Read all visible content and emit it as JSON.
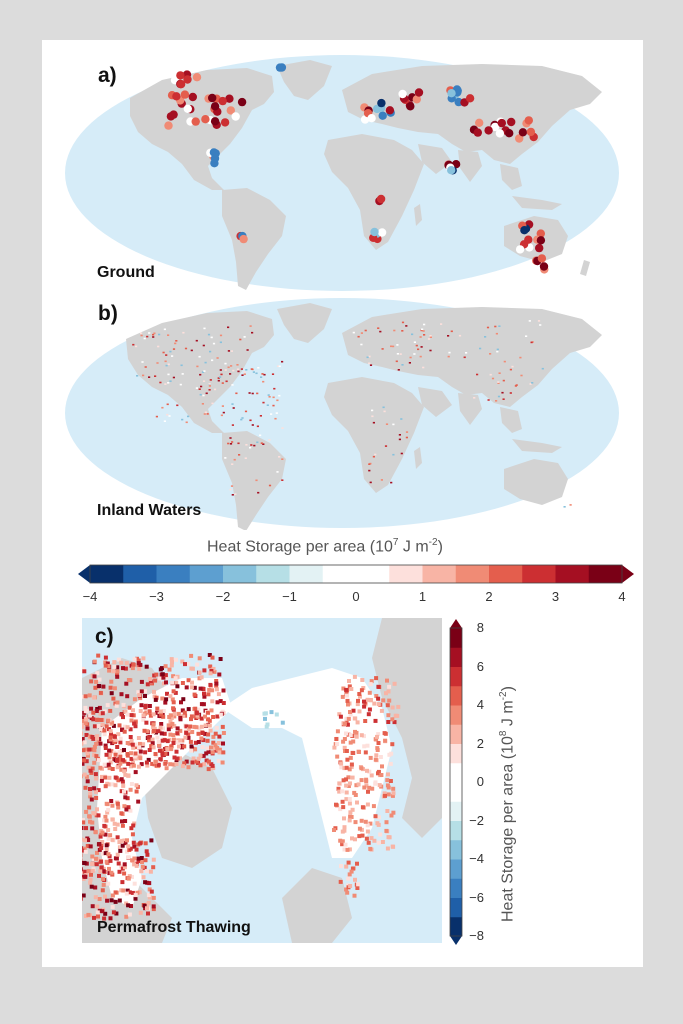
{
  "panels": {
    "a": {
      "letter": "a)",
      "name": "Ground"
    },
    "b": {
      "letter": "b)",
      "name": "Inland Waters"
    },
    "c": {
      "letter": "c)",
      "name": "Permafrost Thawing"
    }
  },
  "colorbar_horizontal": {
    "title": "Heat Storage per area (10",
    "title_exp": "7",
    "title_tail": " J m",
    "title_exp2": "-2",
    "title_end": ")",
    "ticks": [
      "−4",
      "−3",
      "−2",
      "−1",
      "0",
      "1",
      "2",
      "3",
      "4"
    ],
    "range": [
      -4,
      4
    ]
  },
  "colorbar_vertical": {
    "title": "Heat Storage per area (10",
    "title_exp": "8",
    "title_tail": " J m",
    "title_exp2": "-2",
    "title_end": ")",
    "ticks": [
      "8",
      "6",
      "4",
      "2",
      "0",
      "−2",
      "−4",
      "−6",
      "−8"
    ],
    "range": [
      -8,
      8
    ]
  },
  "colors": {
    "ocean": "#d6ecf8",
    "land": "#d3d3d3",
    "scale": [
      "#08306b",
      "#1f5fa8",
      "#3a7fc0",
      "#5d9fd0",
      "#87c1dc",
      "#b6dfe6",
      "#e3f2f4",
      "#ffffff",
      "#ffffff",
      "#fde0dc",
      "#f8b4a5",
      "#f08b75",
      "#e45e4d",
      "#cc2f32",
      "#a50f22",
      "#7a0016"
    ]
  }
}
